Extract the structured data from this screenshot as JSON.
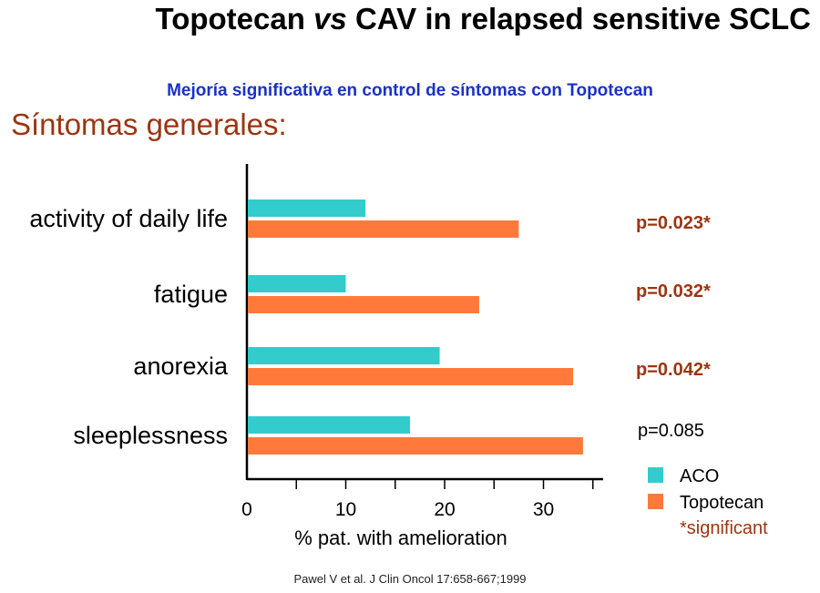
{
  "slide": {
    "title_part1": "Topotecan ",
    "title_vs": "vs",
    "title_part2": " CAV in relapsed sensitive SCLC",
    "subtitle": "Mejoría significativa en control de síntomas con Topotecan",
    "section_heading": "Síntomas generales:",
    "citation": "Pawel V et al. J Clin Oncol 17:658-667;1999"
  },
  "colors": {
    "aco": "#33cccc",
    "topotecan": "#ff7a3a",
    "significant_text": "#9b3512",
    "subtitle": "#1a32c8"
  },
  "chart_data": {
    "type": "bar",
    "orientation": "horizontal",
    "categories": [
      "activity of daily life",
      "fatigue",
      "anorexia",
      "sleeplessness"
    ],
    "series": [
      {
        "name": "ACO",
        "values": [
          12,
          10,
          19.5,
          16.5
        ]
      },
      {
        "name": "Topotecan",
        "values": [
          27.5,
          23.5,
          33,
          34
        ]
      }
    ],
    "p_values": [
      "p=0.023*",
      "p=0.032*",
      "p=0.042*",
      "p=0.085"
    ],
    "significant": [
      true,
      true,
      true,
      false
    ],
    "xlabel": "% pat. with amelioration",
    "ylabel": "",
    "xlim": [
      0,
      35
    ],
    "x_ticks": [
      0,
      10,
      20,
      30
    ],
    "legend_note": "*significant",
    "legend_position": "right",
    "grid": false
  }
}
